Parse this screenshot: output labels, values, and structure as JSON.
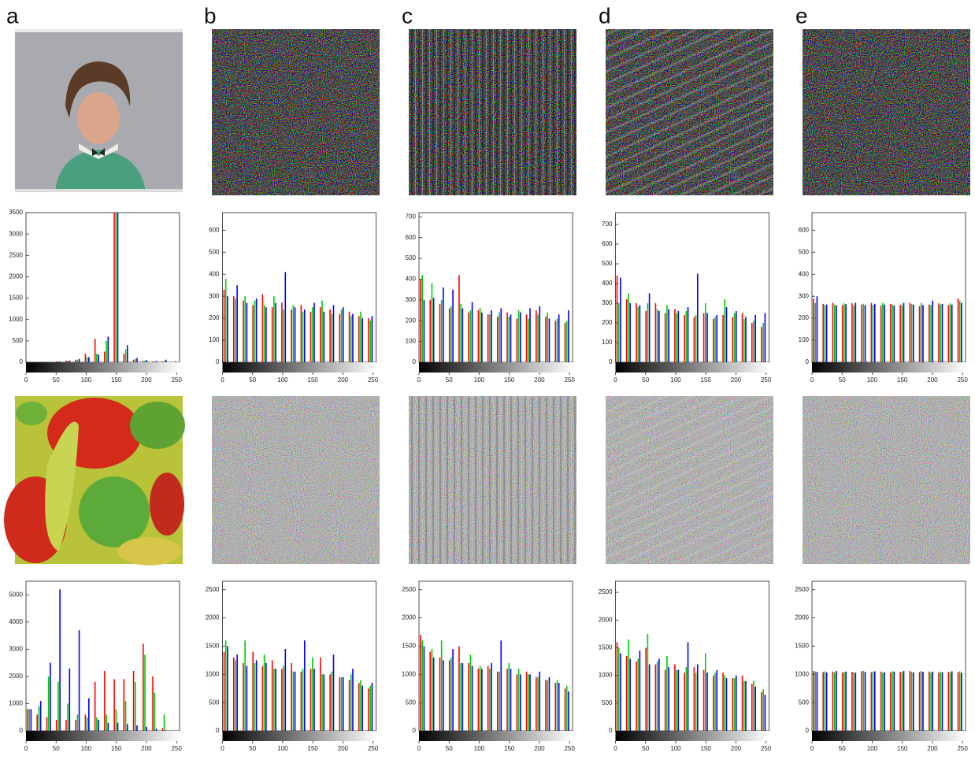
{
  "panel_labels": [
    "a",
    "b",
    "c",
    "d",
    "e"
  ],
  "chart_data": [
    {
      "type": "bar",
      "x": [
        0,
        16,
        32,
        48,
        64,
        80,
        96,
        112,
        128,
        144,
        160,
        176,
        192,
        208,
        224,
        240
      ],
      "xlim": [
        0,
        255
      ],
      "xticks": [
        0,
        50,
        100,
        150,
        200,
        250
      ],
      "ylim": [
        0,
        3500
      ],
      "yticks": [
        0,
        500,
        1000,
        1500,
        2000,
        2500,
        3000,
        3500
      ],
      "series": [
        {
          "color": "#ff0000",
          "values": [
            0,
            5,
            10,
            20,
            40,
            60,
            200,
            550,
            250,
            3500,
            200,
            60,
            30,
            20,
            20,
            10
          ]
        },
        {
          "color": "#00cc00",
          "values": [
            0,
            5,
            10,
            20,
            40,
            60,
            120,
            200,
            500,
            3500,
            300,
            80,
            40,
            20,
            30,
            10
          ]
        },
        {
          "color": "#0000ff",
          "values": [
            0,
            5,
            10,
            20,
            40,
            80,
            120,
            180,
            600,
            3500,
            400,
            100,
            50,
            30,
            60,
            20
          ]
        }
      ]
    },
    {
      "type": "bar",
      "x": [
        0,
        16,
        32,
        48,
        64,
        80,
        96,
        112,
        128,
        144,
        160,
        176,
        192,
        208,
        224,
        240
      ],
      "xlim": [
        0,
        255
      ],
      "xticks": [
        0,
        50,
        100,
        150,
        200,
        250
      ],
      "ylim": [
        0,
        680
      ],
      "yticks": [
        0,
        100,
        200,
        300,
        400,
        500,
        600
      ],
      "series": [
        {
          "color": "#ff0000",
          "values": [
            330,
            300,
            280,
            260,
            310,
            250,
            270,
            240,
            260,
            230,
            250,
            240,
            220,
            230,
            210,
            200
          ]
        },
        {
          "color": "#00cc00",
          "values": [
            380,
            290,
            300,
            280,
            260,
            300,
            240,
            260,
            230,
            250,
            280,
            220,
            240,
            210,
            230,
            190
          ]
        },
        {
          "color": "#0000ff",
          "values": [
            300,
            350,
            270,
            290,
            250,
            270,
            410,
            250,
            240,
            270,
            230,
            260,
            250,
            220,
            200,
            210
          ]
        }
      ]
    },
    {
      "type": "bar",
      "x": [
        0,
        16,
        32,
        48,
        64,
        80,
        96,
        112,
        128,
        144,
        160,
        176,
        192,
        208,
        224,
        240
      ],
      "xlim": [
        0,
        255
      ],
      "xticks": [
        0,
        50,
        100,
        150,
        200,
        250
      ],
      "ylim": [
        0,
        720
      ],
      "yticks": [
        0,
        100,
        200,
        300,
        400,
        500,
        600,
        700
      ],
      "series": [
        {
          "color": "#ff0000",
          "values": [
            400,
            300,
            280,
            260,
            420,
            240,
            250,
            230,
            220,
            240,
            210,
            230,
            250,
            220,
            200,
            190
          ]
        },
        {
          "color": "#00cc00",
          "values": [
            420,
            380,
            300,
            270,
            280,
            250,
            260,
            230,
            240,
            220,
            250,
            210,
            230,
            240,
            210,
            200
          ]
        },
        {
          "color": "#0000ff",
          "values": [
            300,
            310,
            360,
            350,
            260,
            290,
            240,
            250,
            260,
            230,
            240,
            260,
            270,
            210,
            230,
            250
          ]
        }
      ]
    },
    {
      "type": "bar",
      "x": [
        0,
        16,
        32,
        48,
        64,
        80,
        96,
        112,
        128,
        144,
        160,
        176,
        192,
        208,
        224,
        240
      ],
      "xlim": [
        0,
        255
      ],
      "xticks": [
        0,
        50,
        100,
        150,
        200,
        250
      ],
      "ylim": [
        0,
        760
      ],
      "yticks": [
        0,
        100,
        200,
        300,
        400,
        500,
        600,
        700
      ],
      "series": [
        {
          "color": "#ff0000",
          "values": [
            440,
            320,
            300,
            260,
            300,
            250,
            270,
            240,
            230,
            250,
            220,
            240,
            230,
            250,
            200,
            180
          ]
        },
        {
          "color": "#00cc00",
          "values": [
            300,
            350,
            280,
            300,
            270,
            290,
            250,
            260,
            240,
            300,
            230,
            320,
            250,
            220,
            210,
            200
          ]
        },
        {
          "color": "#0000ff",
          "values": [
            430,
            300,
            290,
            350,
            260,
            270,
            260,
            280,
            450,
            250,
            240,
            280,
            260,
            230,
            240,
            250
          ]
        }
      ]
    },
    {
      "type": "bar",
      "x": [
        0,
        16,
        32,
        48,
        64,
        80,
        96,
        112,
        128,
        144,
        160,
        176,
        192,
        208,
        224,
        240
      ],
      "xlim": [
        0,
        255
      ],
      "xticks": [
        0,
        50,
        100,
        150,
        200,
        250
      ],
      "ylim": [
        0,
        680
      ],
      "yticks": [
        0,
        100,
        200,
        300,
        400,
        500,
        600
      ],
      "series": [
        {
          "color": "#ff0000",
          "values": [
            290,
            265,
            270,
            260,
            268,
            262,
            270,
            258,
            265,
            260,
            270,
            255,
            262,
            268,
            260,
            290
          ]
        },
        {
          "color": "#00cc00",
          "values": [
            270,
            260,
            262,
            268,
            258,
            266,
            260,
            270,
            262,
            258,
            264,
            270,
            260,
            262,
            268,
            280
          ]
        },
        {
          "color": "#0000ff",
          "values": [
            300,
            262,
            258,
            264,
            270,
            260,
            266,
            262,
            258,
            270,
            262,
            260,
            280,
            265,
            262,
            270
          ]
        }
      ]
    },
    {
      "type": "bar",
      "x": [
        0,
        16,
        32,
        48,
        64,
        80,
        96,
        112,
        128,
        144,
        160,
        176,
        192,
        208,
        224,
        240
      ],
      "xlim": [
        0,
        255
      ],
      "xticks": [
        0,
        50,
        100,
        150,
        200,
        250
      ],
      "ylim": [
        0,
        5500
      ],
      "yticks": [
        0,
        1000,
        2000,
        3000,
        4000,
        5000
      ],
      "series": [
        {
          "color": "#ff0000",
          "values": [
            800,
            600,
            500,
            400,
            400,
            400,
            600,
            1800,
            2200,
            1900,
            1900,
            2200,
            3200,
            2000,
            100,
            0
          ]
        },
        {
          "color": "#00cc00",
          "values": [
            800,
            900,
            2000,
            1800,
            1000,
            600,
            500,
            500,
            600,
            800,
            1100,
            1800,
            2800,
            1400,
            600,
            0
          ]
        },
        {
          "color": "#0000ff",
          "values": [
            800,
            1100,
            2500,
            5200,
            2300,
            3700,
            1200,
            400,
            300,
            300,
            250,
            200,
            150,
            80,
            20,
            0
          ]
        }
      ]
    },
    {
      "type": "bar",
      "x": [
        0,
        16,
        32,
        48,
        64,
        80,
        96,
        112,
        128,
        144,
        160,
        176,
        192,
        208,
        224,
        240
      ],
      "xlim": [
        0,
        255
      ],
      "xticks": [
        0,
        50,
        100,
        150,
        200,
        250
      ],
      "ylim": [
        0,
        2650
      ],
      "yticks": [
        0,
        500,
        1000,
        1500,
        2000,
        2500
      ],
      "series": [
        {
          "color": "#ff0000",
          "values": [
            1400,
            1300,
            1200,
            1400,
            1150,
            1250,
            1100,
            1200,
            1050,
            1100,
            1300,
            1000,
            950,
            900,
            850,
            750
          ]
        },
        {
          "color": "#00cc00",
          "values": [
            1600,
            1250,
            1600,
            1200,
            1350,
            1100,
            1150,
            1050,
            1100,
            1300,
            1000,
            1050,
            950,
            1000,
            900,
            800
          ]
        },
        {
          "color": "#0000ff",
          "values": [
            1500,
            1350,
            1150,
            1250,
            1200,
            1100,
            1450,
            1050,
            1600,
            1100,
            1000,
            1350,
            950,
            1100,
            800,
            850
          ]
        }
      ]
    },
    {
      "type": "bar",
      "x": [
        0,
        16,
        32,
        48,
        64,
        80,
        96,
        112,
        128,
        144,
        160,
        176,
        192,
        208,
        224,
        240
      ],
      "xlim": [
        0,
        255
      ],
      "xticks": [
        0,
        50,
        100,
        150,
        200,
        250
      ],
      "ylim": [
        0,
        2650
      ],
      "yticks": [
        0,
        500,
        1000,
        1500,
        2000,
        2500
      ],
      "series": [
        {
          "color": "#ff0000",
          "values": [
            1700,
            1400,
            1300,
            1250,
            1500,
            1200,
            1100,
            1150,
            1050,
            1100,
            1000,
            1050,
            950,
            900,
            850,
            750
          ]
        },
        {
          "color": "#00cc00",
          "values": [
            1600,
            1450,
            1600,
            1300,
            1200,
            1350,
            1150,
            1100,
            1050,
            1200,
            1100,
            1000,
            950,
            900,
            900,
            800
          ]
        },
        {
          "color": "#0000ff",
          "values": [
            1500,
            1300,
            1250,
            1450,
            1200,
            1150,
            1100,
            1200,
            1600,
            1100,
            1000,
            1000,
            1050,
            950,
            850,
            700
          ]
        }
      ]
    },
    {
      "type": "bar",
      "x": [
        0,
        16,
        32,
        48,
        64,
        80,
        96,
        112,
        128,
        144,
        160,
        176,
        192,
        208,
        224,
        240
      ],
      "xlim": [
        0,
        255
      ],
      "xticks": [
        0,
        50,
        100,
        150,
        200,
        250
      ],
      "ylim": [
        0,
        2700
      ],
      "yticks": [
        0,
        500,
        1000,
        1500,
        2000,
        2500
      ],
      "series": [
        {
          "color": "#ff0000",
          "values": [
            1600,
            1350,
            1250,
            1500,
            1200,
            1100,
            1200,
            1050,
            1150,
            1100,
            1000,
            1050,
            950,
            1000,
            850,
            700
          ]
        },
        {
          "color": "#00cc00",
          "values": [
            1500,
            1650,
            1300,
            1750,
            1250,
            1350,
            1100,
            1150,
            1050,
            1400,
            1050,
            1000,
            950,
            900,
            900,
            750
          ]
        },
        {
          "color": "#0000ff",
          "values": [
            1400,
            1300,
            1450,
            1200,
            1300,
            1150,
            1100,
            1600,
            1200,
            1050,
            1100,
            950,
            1000,
            900,
            800,
            650
          ]
        }
      ]
    },
    {
      "type": "bar",
      "x": [
        0,
        16,
        32,
        48,
        64,
        80,
        96,
        112,
        128,
        144,
        160,
        176,
        192,
        208,
        224,
        240
      ],
      "xlim": [
        0,
        255
      ],
      "xticks": [
        0,
        50,
        100,
        150,
        200,
        250
      ],
      "ylim": [
        0,
        2650
      ],
      "yticks": [
        0,
        500,
        1000,
        1500,
        2000,
        2500
      ],
      "series": [
        {
          "color": "#ff0000",
          "values": [
            1060,
            1040,
            1050,
            1030,
            1045,
            1055,
            1040,
            1050,
            1035,
            1045,
            1060,
            1040,
            1050,
            1030,
            1045,
            1040
          ]
        },
        {
          "color": "#00cc00",
          "values": [
            1050,
            1055,
            1035,
            1045,
            1040,
            1060,
            1050,
            1030,
            1055,
            1040,
            1045,
            1060,
            1035,
            1050,
            1040,
            1055
          ]
        },
        {
          "color": "#0000ff",
          "values": [
            1045,
            1035,
            1060,
            1050,
            1030,
            1045,
            1055,
            1040,
            1050,
            1060,
            1035,
            1045,
            1050,
            1040,
            1055,
            1030
          ]
        }
      ]
    }
  ]
}
